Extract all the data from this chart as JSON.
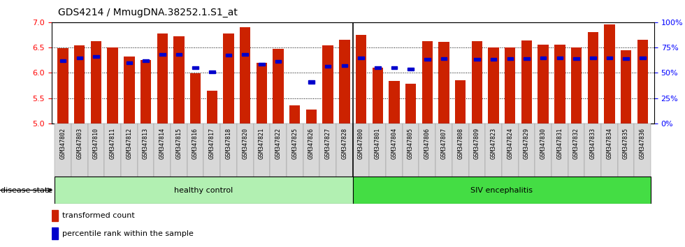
{
  "title": "GDS4214 / MmugDNA.38252.1.S1_at",
  "samples": [
    "GSM347802",
    "GSM347803",
    "GSM347810",
    "GSM347811",
    "GSM347812",
    "GSM347813",
    "GSM347814",
    "GSM347815",
    "GSM347816",
    "GSM347817",
    "GSM347818",
    "GSM347820",
    "GSM347821",
    "GSM347822",
    "GSM347825",
    "GSM347826",
    "GSM347827",
    "GSM347828",
    "GSM347800",
    "GSM347801",
    "GSM347804",
    "GSM347805",
    "GSM347806",
    "GSM347807",
    "GSM347808",
    "GSM347809",
    "GSM347823",
    "GSM347824",
    "GSM347829",
    "GSM347830",
    "GSM347831",
    "GSM347832",
    "GSM347833",
    "GSM347834",
    "GSM347835",
    "GSM347836"
  ],
  "red_values": [
    6.49,
    6.55,
    6.63,
    6.5,
    6.32,
    6.25,
    6.78,
    6.72,
    5.99,
    5.65,
    6.78,
    6.9,
    6.2,
    6.47,
    5.36,
    5.27,
    6.54,
    6.65,
    6.75,
    6.1,
    5.84,
    5.78,
    6.62,
    6.61,
    5.86,
    6.63,
    6.5,
    6.5,
    6.64,
    6.56,
    6.56,
    6.5,
    6.8,
    6.95,
    6.44,
    6.65
  ],
  "blue_values": [
    6.24,
    6.3,
    6.32,
    null,
    6.2,
    6.24,
    6.37,
    6.36,
    6.1,
    6.02,
    6.35,
    6.36,
    6.17,
    6.22,
    null,
    5.82,
    6.13,
    6.14,
    6.3,
    6.1,
    6.1,
    6.07,
    6.27,
    6.28,
    null,
    6.27,
    6.27,
    6.28,
    6.28,
    6.3,
    6.3,
    6.28,
    6.3,
    6.3,
    6.28,
    6.3
  ],
  "group_boundary": 18,
  "group1_label": "healthy control",
  "group2_label": "SIV encephalitis",
  "group1_color": "#b2f0b2",
  "group2_color": "#44dd44",
  "bar_color": "#CC2200",
  "blue_color": "#0000CC",
  "ymin": 5.0,
  "ymax": 7.0,
  "yticks": [
    5.0,
    5.5,
    6.0,
    6.5,
    7.0
  ],
  "right_yticks": [
    0,
    25,
    50,
    75,
    100
  ],
  "right_yticklabels": [
    "0%",
    "25%",
    "50%",
    "75%",
    "100%"
  ],
  "legend_red": "transformed count",
  "legend_blue": "percentile rank within the sample",
  "disease_state_label": "disease state",
  "bar_width": 0.65,
  "tick_label_fontsize": 6,
  "title_fontsize": 10
}
